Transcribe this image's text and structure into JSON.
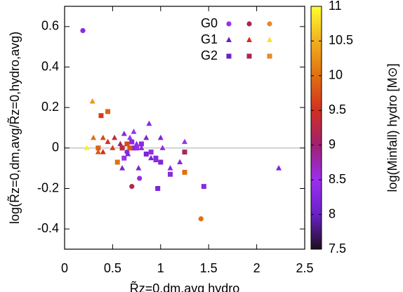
{
  "chart_data": {
    "type": "scatter",
    "x_label": "R̃z=0,dm,avg hydro",
    "y_label": "log(R̃z=0,dm,avg/R̃z=0,hydro,avg)",
    "colorbar_label": "log(Minfall) hydro [M⊙]",
    "xlim": [
      0,
      2.5
    ],
    "ylim": [
      -0.5,
      0.7
    ],
    "xticks": [
      0,
      0.5,
      1,
      1.5,
      2,
      2.5
    ],
    "yticks": [
      -0.4,
      -0.2,
      0,
      0.2,
      0.4,
      0.6
    ],
    "clim": [
      7.5,
      11
    ],
    "cticks": [
      7.5,
      8,
      8.5,
      9,
      9.5,
      10,
      10.5,
      11
    ],
    "colormap": [
      "#1e0e1e",
      "#6a20c8",
      "#9a30f0",
      "#a02070",
      "#d03020",
      "#e07010",
      "#f0b020",
      "#ffff30"
    ],
    "reference_line": 0,
    "series": [
      {
        "name": "G0",
        "marker": "circle",
        "legend_colors": [
          "#9a30f0",
          "#b02258",
          "#e8892a"
        ],
        "x": [
          0.19,
          0.78,
          0.7,
          1.42,
          0.65
        ],
        "values": [
          0.58,
          -0.15,
          -0.19,
          -0.35,
          -0.02
        ],
        "c": [
          8.3,
          8.4,
          9.2,
          10.0,
          8.3
        ]
      },
      {
        "name": "G1",
        "marker": "triangle",
        "legend_colors": [
          "#6a20c8",
          "#d03020",
          "#ffe030"
        ],
        "x": [
          0.29,
          0.23,
          0.3,
          0.4,
          0.45,
          0.52,
          0.62,
          0.68,
          0.58,
          0.5,
          0.66,
          0.75,
          0.8,
          0.85,
          0.9,
          0.95,
          1.0,
          1.02,
          0.88,
          1.1,
          0.6,
          0.4,
          0.35,
          2.23,
          1.2,
          1.25,
          0.77,
          0.72
        ],
        "values": [
          0.23,
          0.0,
          0.05,
          0.05,
          0.03,
          0.05,
          0.07,
          0.05,
          0.02,
          0.0,
          -0.03,
          0.02,
          0.0,
          0.05,
          -0.05,
          -0.06,
          0.05,
          0.0,
          0.12,
          -0.1,
          -0.1,
          -0.02,
          -0.02,
          -0.1,
          -0.07,
          0.03,
          -0.1,
          0.08
        ],
        "c": [
          10.3,
          10.9,
          10.0,
          9.7,
          9.5,
          9.3,
          8.3,
          8.5,
          9.0,
          9.6,
          8.2,
          8.4,
          8.3,
          8.2,
          8.2,
          8.3,
          8.2,
          8.4,
          8.3,
          8.3,
          8.2,
          9.5,
          9.8,
          8.2,
          8.3,
          8.5,
          8.2,
          8.5
        ]
      },
      {
        "name": "G2",
        "marker": "square",
        "legend_colors": [
          "#6a20c8",
          "#b02258",
          "#e8892a"
        ],
        "x": [
          0.35,
          0.38,
          0.45,
          0.55,
          0.6,
          0.65,
          0.7,
          0.72,
          0.75,
          0.8,
          0.85,
          0.9,
          0.95,
          1.0,
          1.1,
          0.97,
          1.25,
          1.25,
          1.45,
          0.62,
          0.68
        ],
        "values": [
          0.0,
          0.16,
          0.18,
          -0.07,
          0.0,
          0.02,
          0.03,
          0.0,
          0.0,
          0.02,
          -0.03,
          -0.02,
          -0.05,
          -0.07,
          -0.13,
          -0.2,
          -0.02,
          -0.12,
          -0.19,
          -0.05,
          0.0
        ],
        "c": [
          9.9,
          9.6,
          9.9,
          10.0,
          9.3,
          9.7,
          8.3,
          8.2,
          8.4,
          8.3,
          8.2,
          8.4,
          8.3,
          8.2,
          8.3,
          8.2,
          9.1,
          10.0,
          8.3,
          8.5,
          9.8
        ]
      }
    ]
  }
}
